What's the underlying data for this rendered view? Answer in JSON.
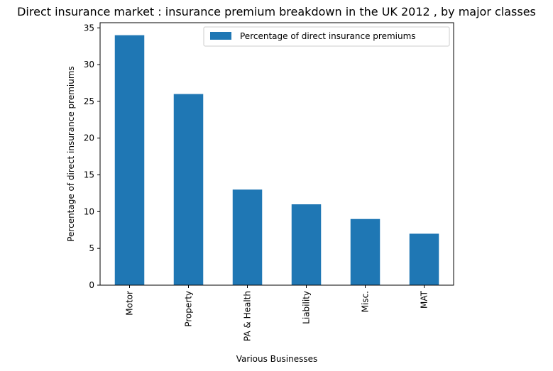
{
  "chart_data": {
    "type": "bar",
    "title": "Direct insurance market : insurance premium breakdown in the UK 2012 , by major classes",
    "xlabel": "Various Businesses",
    "ylabel": "Percentage of direct insurance premiums",
    "categories": [
      "Motor",
      "Property",
      "PA & Health",
      "Liability",
      "Misc.",
      "MAT"
    ],
    "series": [
      {
        "name": "Percentage of direct insurance premiums",
        "values": [
          34,
          26,
          13,
          11,
          9,
          7
        ],
        "color": "#1f77b4"
      }
    ],
    "ylim": [
      0,
      35.7
    ],
    "yticks": [
      0,
      5,
      10,
      15,
      20,
      25,
      30,
      35
    ],
    "legend": "top-right",
    "grid": false
  }
}
